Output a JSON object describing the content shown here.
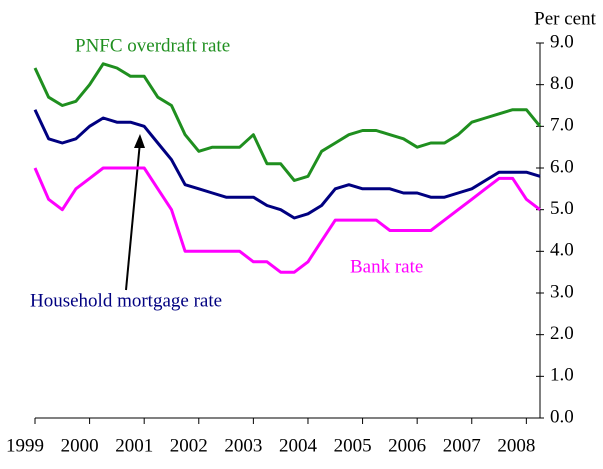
{
  "chart_data": {
    "type": "line",
    "y_label": "Per cent",
    "categories": [
      "1999",
      null,
      null,
      null,
      "2000",
      null,
      null,
      null,
      "2001",
      null,
      null,
      null,
      "2002",
      null,
      null,
      null,
      "2003",
      null,
      null,
      null,
      "2004",
      null,
      null,
      null,
      "2005",
      null,
      null,
      null,
      "2006",
      null,
      null,
      null,
      "2007",
      null,
      null,
      null,
      "2008",
      null
    ],
    "series": [
      {
        "name": "PNFC overdraft rate",
        "color": "#1f8f1f",
        "values": [
          8.4,
          7.7,
          7.5,
          7.6,
          8.0,
          8.5,
          8.4,
          8.2,
          8.2,
          7.7,
          7.5,
          6.8,
          6.4,
          6.5,
          6.5,
          6.5,
          6.8,
          6.1,
          6.1,
          5.7,
          5.8,
          6.4,
          6.6,
          6.8,
          6.9,
          6.9,
          6.8,
          6.7,
          6.5,
          6.6,
          6.6,
          6.8,
          7.1,
          7.2,
          7.3,
          7.4,
          7.4,
          7.0
        ]
      },
      {
        "name": "Household mortgage rate",
        "color": "#000080",
        "values": [
          7.4,
          6.7,
          6.6,
          6.7,
          7.0,
          7.2,
          7.1,
          7.1,
          7.0,
          6.6,
          6.2,
          5.6,
          5.5,
          5.4,
          5.3,
          5.3,
          5.3,
          5.1,
          5.0,
          4.8,
          4.9,
          5.1,
          5.5,
          5.6,
          5.5,
          5.5,
          5.5,
          5.4,
          5.4,
          5.3,
          5.3,
          5.4,
          5.5,
          5.7,
          5.9,
          5.9,
          5.9,
          5.8
        ]
      },
      {
        "name": "Bank rate",
        "color": "#ff00ff",
        "values": [
          6.0,
          5.25,
          5.0,
          5.5,
          5.75,
          6.0,
          6.0,
          6.0,
          6.0,
          5.5,
          5.0,
          4.0,
          4.0,
          4.0,
          4.0,
          4.0,
          3.75,
          3.75,
          3.5,
          3.5,
          3.75,
          4.25,
          4.75,
          4.75,
          4.75,
          4.75,
          4.5,
          4.5,
          4.5,
          4.5,
          4.75,
          5.0,
          5.25,
          5.5,
          5.75,
          5.75,
          5.25,
          5.0
        ]
      }
    ],
    "ylim": [
      0,
      9
    ],
    "yticks": [
      {
        "value": 0,
        "label": "0.0"
      },
      {
        "value": 1,
        "label": "1.0"
      },
      {
        "value": 2,
        "label": "2.0"
      },
      {
        "value": 3,
        "label": "3.0"
      },
      {
        "value": 4,
        "label": "4.0"
      },
      {
        "value": 5,
        "label": "5.0"
      },
      {
        "value": 6,
        "label": "6.0"
      },
      {
        "value": 7,
        "label": "7.0"
      },
      {
        "value": 8,
        "label": "8.0"
      },
      {
        "value": 9,
        "label": "9.0"
      }
    ],
    "y_axis_side": "right",
    "grid": false
  }
}
